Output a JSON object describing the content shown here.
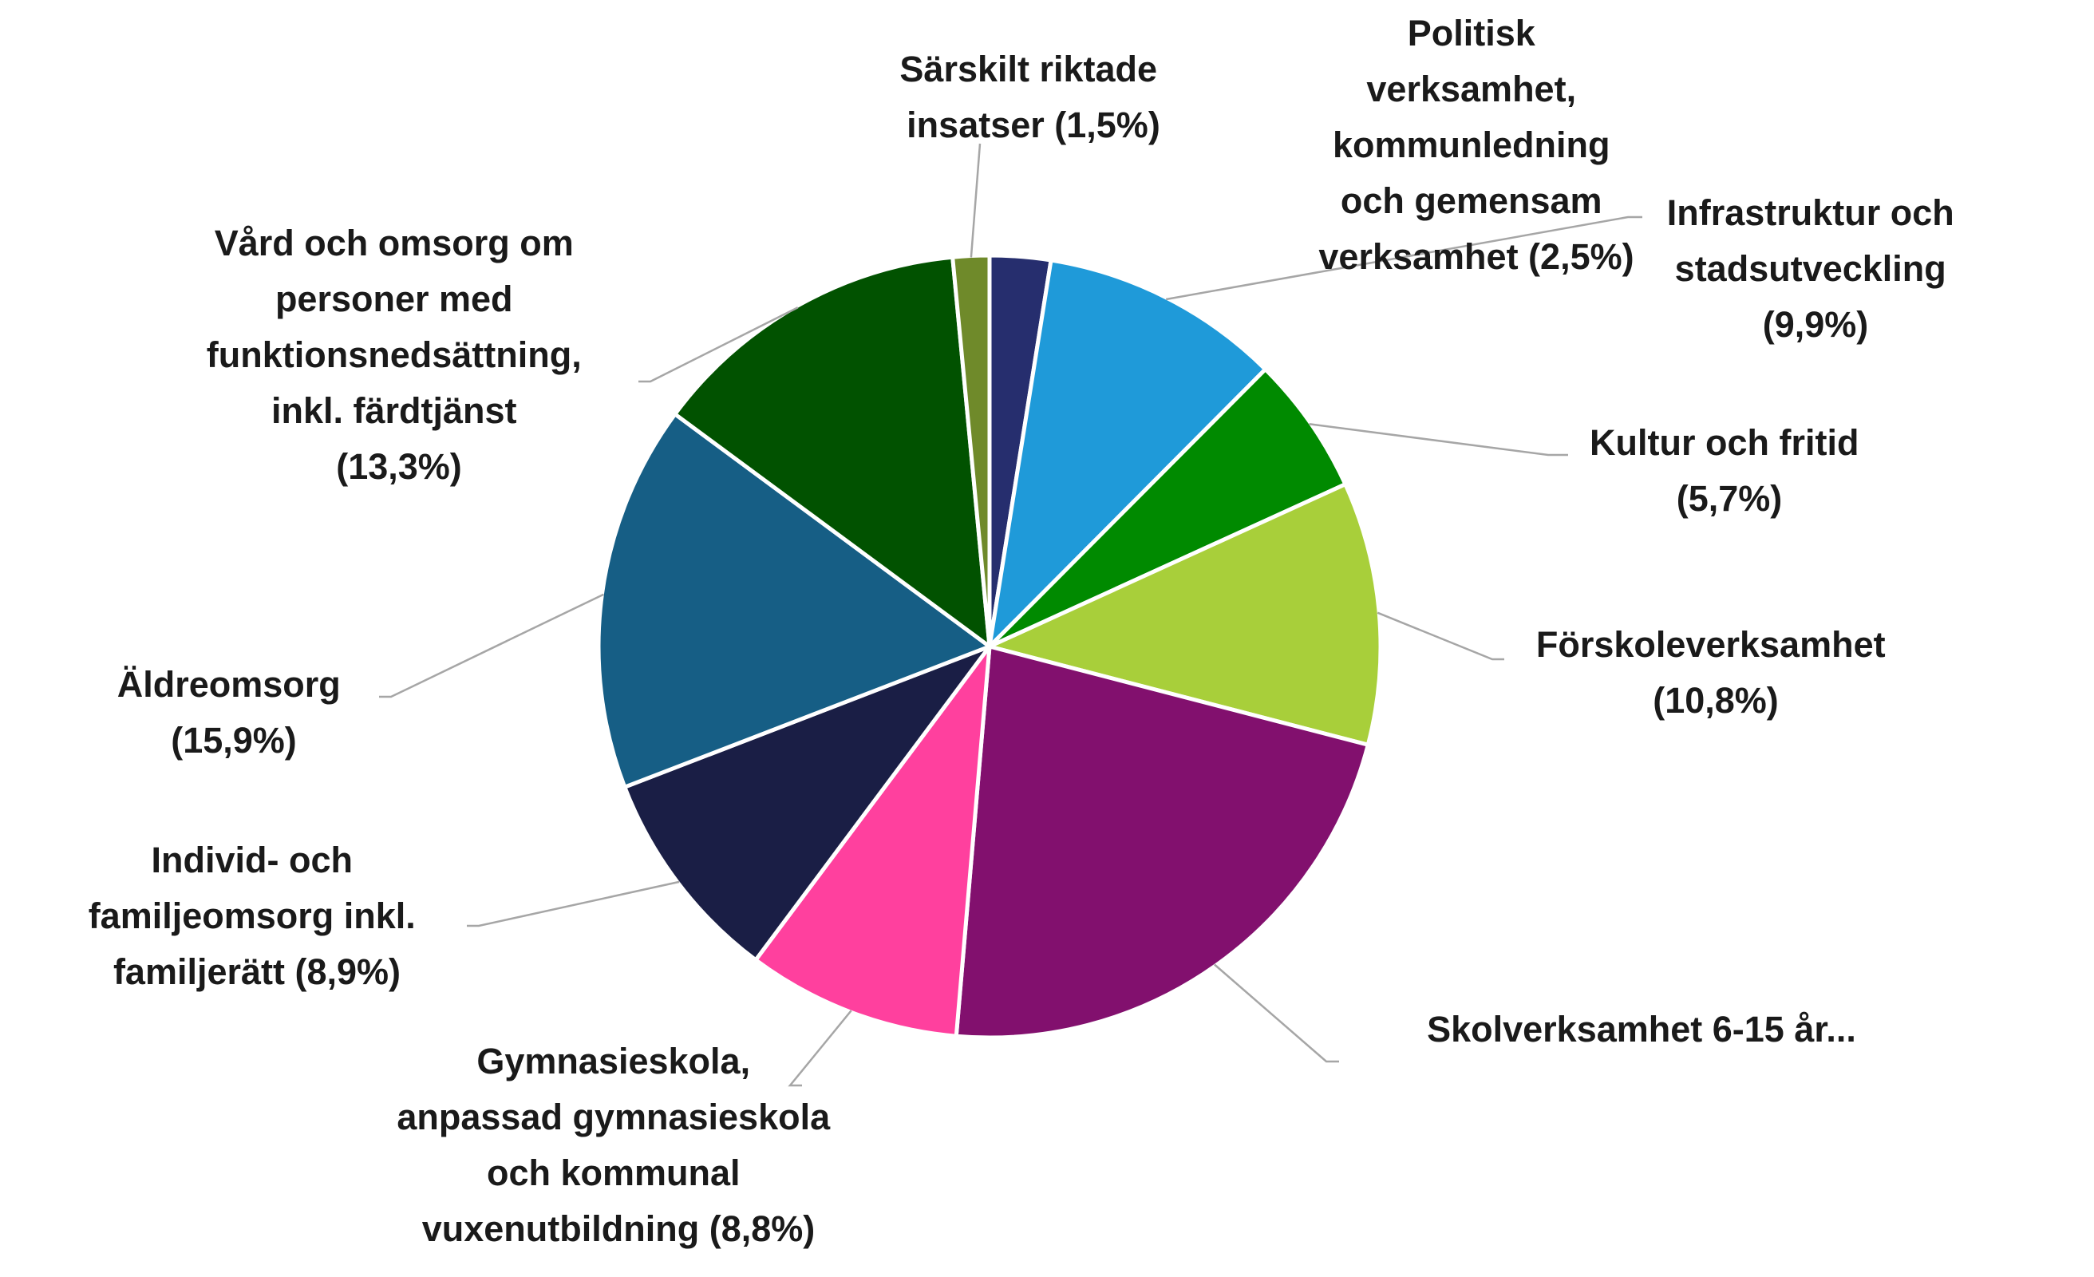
{
  "chart_data": {
    "type": "pie",
    "title": "",
    "slices": [
      {
        "label": "Politisk verksamhet, kommunledning och gemensam verksamhet (2,5%)",
        "value": 2.5,
        "color": "#262e6e"
      },
      {
        "label": "Infrastruktur och stadsutveckling (9,9%)",
        "value": 9.9,
        "color": "#1f9ad9"
      },
      {
        "label": "Kultur och fritid (5,7%)",
        "value": 5.7,
        "color": "#008a00"
      },
      {
        "label": "Förskoleverksamhet (10,8%)",
        "value": 10.8,
        "color": "#a8cf3a"
      },
      {
        "label": "Skolverksamhet 6-15 år...",
        "value": 22.2,
        "color": "#82106e"
      },
      {
        "label": "Gymnasieskola, anpassad gymnasieskola och kommunal vuxenutbildning (8,8%)",
        "value": 8.8,
        "color": "#ff409e"
      },
      {
        "label": "Individ- och familjeomsorg inkl. familjerätt (8,9%)",
        "value": 8.9,
        "color": "#1a1e45"
      },
      {
        "label": "Äldreomsorg (15,9%)",
        "value": 15.9,
        "color": "#165e85"
      },
      {
        "label": "Vård och omsorg om personer med funktionsnedsättning, inkl. färdtjänst (13,3%)",
        "value": 13.3,
        "color": "#015200"
      },
      {
        "label": "Särskilt riktade insatser (1,5%)",
        "value": 1.5,
        "color": "#6f8a2a"
      }
    ],
    "labels": {
      "politisk": [
        "Politisk",
        "verksamhet,",
        "kommunledning",
        "och gemensam",
        "verksamhet (2,5%)"
      ],
      "infrastruktur": [
        "Infrastruktur och",
        "stadsutveckling",
        "(9,9%)"
      ],
      "kultur": [
        "Kultur och fritid",
        "(5,7%)"
      ],
      "forskole": [
        "Förskoleverksamhet",
        "(10,8%)"
      ],
      "skol": [
        "Skolverksamhet 6-15 år..."
      ],
      "gymnasie": [
        "Gymnasieskola,",
        "anpassad gymnasieskola",
        "och kommunal",
        "vuxenutbildning (8,8%)"
      ],
      "individ": [
        "Individ- och",
        "familjeomsorg inkl.",
        "familjerätt (8,9%)"
      ],
      "aldre": [
        "Äldreomsorg",
        "(15,9%)"
      ],
      "vard": [
        "Vård och omsorg om",
        "personer med",
        "funktionsnedsättning,",
        "inkl. färdtjänst",
        "(13,3%)"
      ],
      "sarskilt": [
        "Särskilt riktade",
        "insatser (1,5%)"
      ]
    },
    "legend": "none"
  }
}
